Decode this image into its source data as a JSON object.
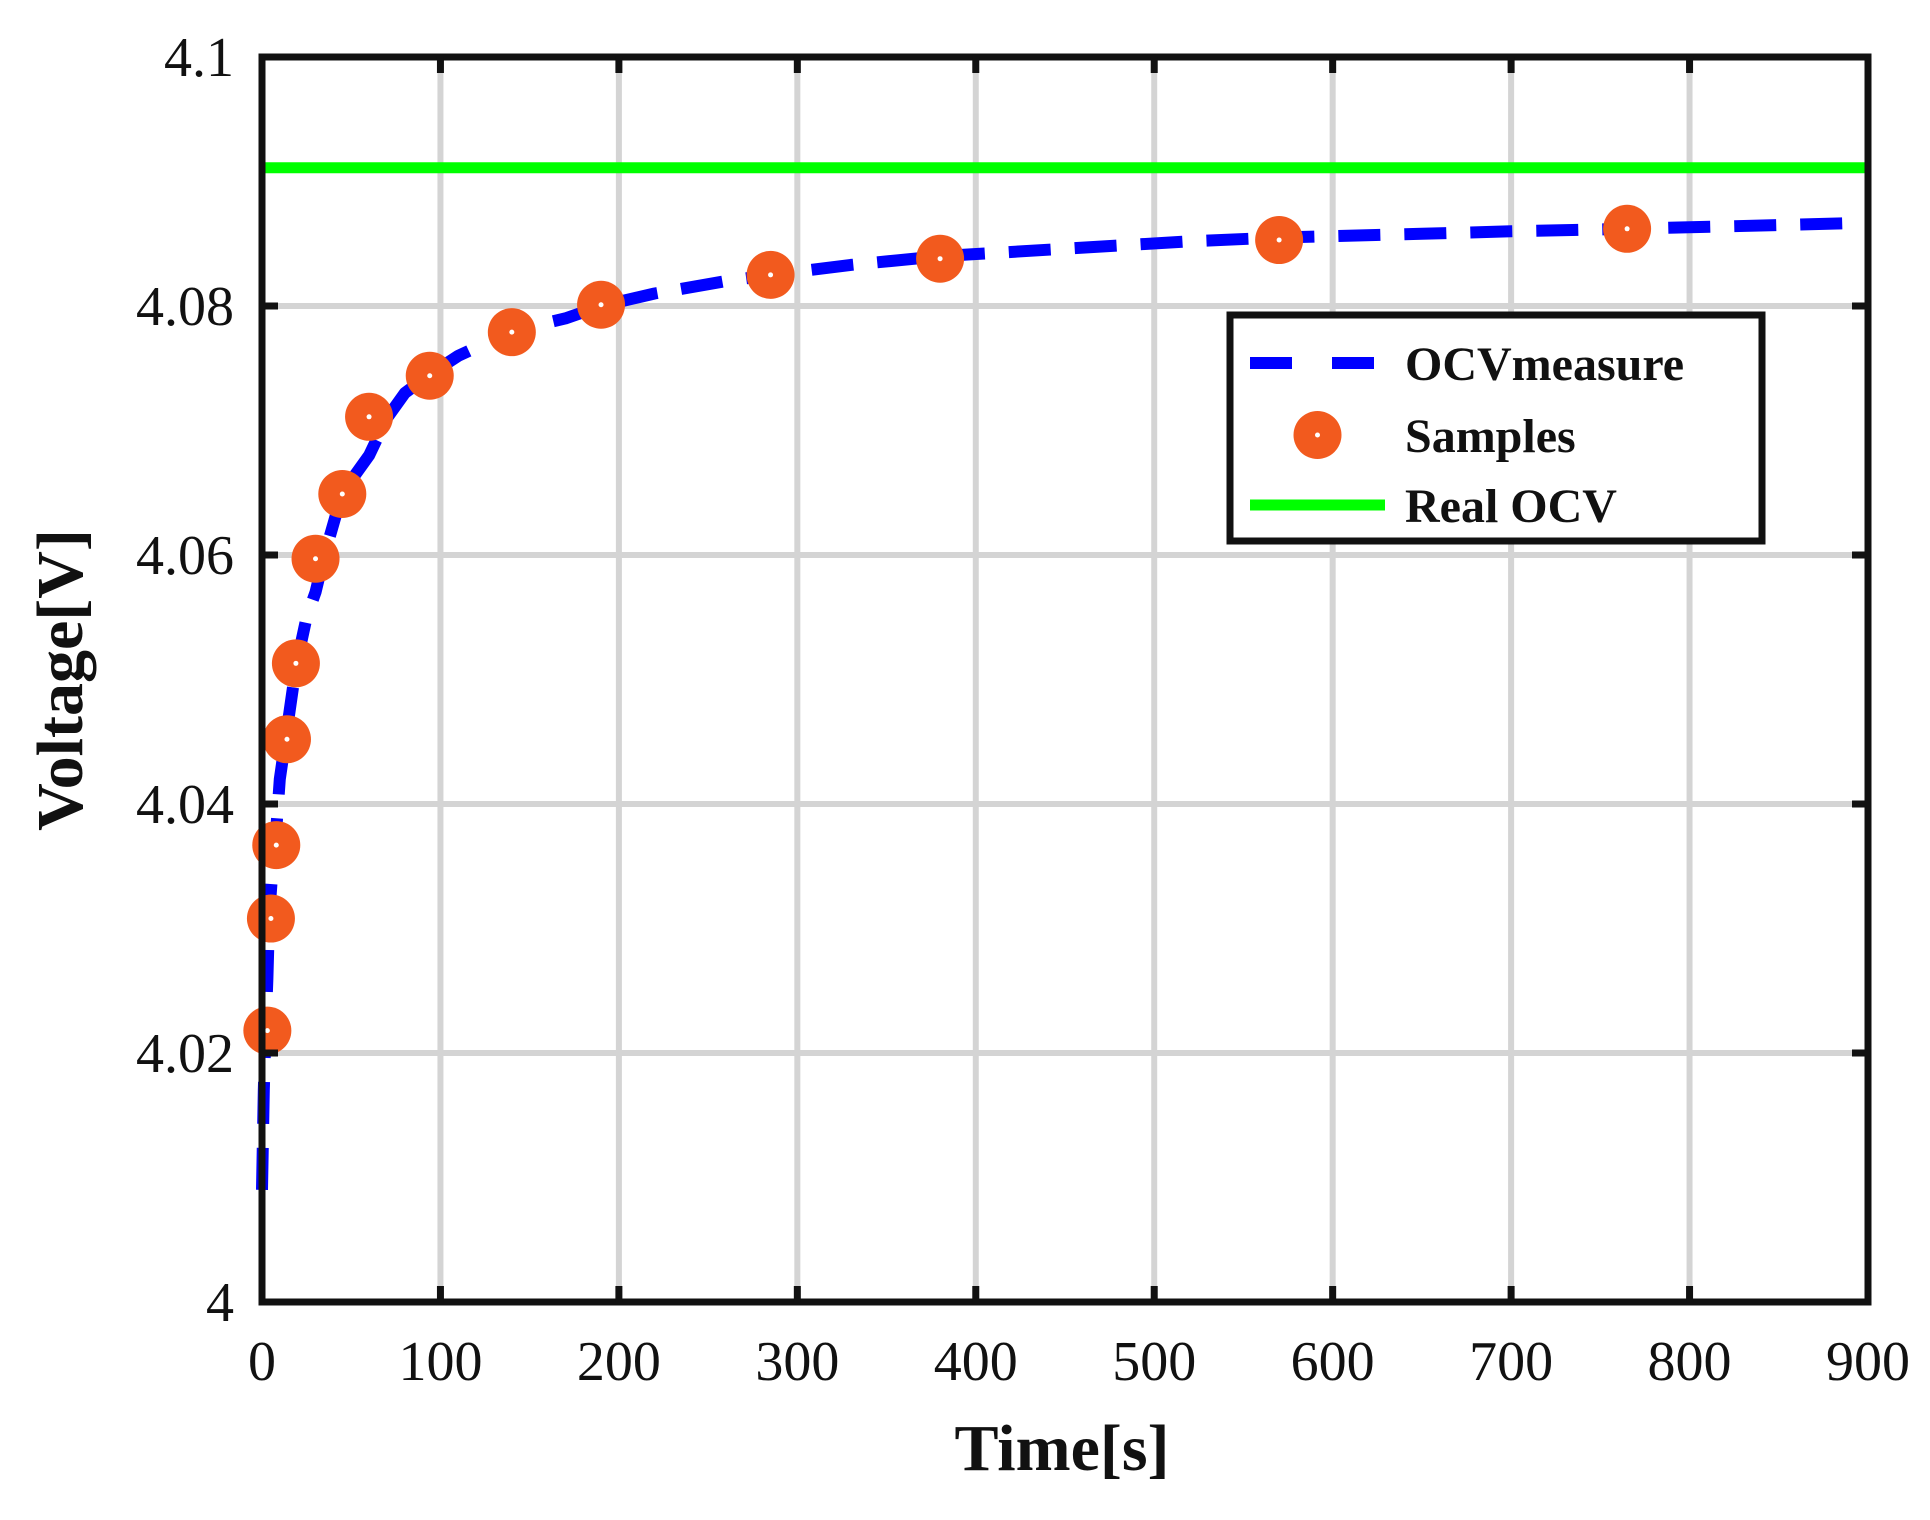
{
  "chart_data": {
    "type": "line",
    "title": "",
    "xlabel": "Time[s]",
    "ylabel": "Voltage[V]",
    "xlim": [
      0,
      900
    ],
    "ylim": [
      4.0,
      4.1
    ],
    "xticks": [
      0,
      100,
      200,
      300,
      400,
      500,
      600,
      700,
      800,
      900
    ],
    "xtick_labels": [
      "0",
      "100",
      "200",
      "300",
      "400",
      "500",
      "600",
      "700",
      "800",
      "900"
    ],
    "yticks": [
      4.0,
      4.02,
      4.04,
      4.06,
      4.08,
      4.1
    ],
    "ytick_labels": [
      "4",
      "4.02",
      "4.04",
      "4.06",
      "4.08",
      "4.1"
    ],
    "grid": true,
    "legend_position": "top-right",
    "series": [
      {
        "name": "OCVmeasure",
        "style": "dashed-line",
        "color": "#0000ff",
        "x": [
          0,
          1,
          2,
          3,
          4,
          6,
          8,
          10,
          14,
          19,
          25,
          30,
          35,
          45,
          60,
          70,
          80,
          94,
          110,
          140,
          170,
          190,
          220,
          260,
          285,
          330,
          380,
          450,
          520,
          570,
          650,
          700,
          765,
          850,
          900
        ],
        "y": [
          4.009,
          4.017,
          4.022,
          4.026,
          4.031,
          4.035,
          4.038,
          4.042,
          4.046,
          4.051,
          4.055,
          4.057,
          4.06,
          4.065,
          4.068,
          4.071,
          4.073,
          4.0745,
          4.076,
          4.078,
          4.079,
          4.08,
          4.081,
          4.082,
          4.0825,
          4.0833,
          4.084,
          4.0846,
          4.0852,
          4.0855,
          4.0858,
          4.086,
          4.0862,
          4.0865,
          4.0867
        ]
      },
      {
        "name": "Samples",
        "style": "markers",
        "color": "#f25a1e",
        "x": [
          3,
          5,
          8,
          14,
          19,
          30,
          45,
          60,
          94,
          140,
          190,
          285,
          380,
          570,
          765
        ],
        "y": [
          4.0218,
          4.0308,
          4.0367,
          4.0452,
          4.0513,
          4.0597,
          4.0649,
          4.0711,
          4.0744,
          4.0779,
          4.0801,
          4.0825,
          4.0838,
          4.0853,
          4.0862
        ]
      },
      {
        "name": "Real OCV",
        "style": "solid-line",
        "color": "#00ff00",
        "x": [
          0,
          900
        ],
        "y": [
          4.0911,
          4.0911
        ]
      }
    ]
  },
  "colors": {
    "axis": "#111111",
    "grid": "#d4d4d4",
    "background": "#ffffff",
    "marker_center": "#ffffff"
  }
}
